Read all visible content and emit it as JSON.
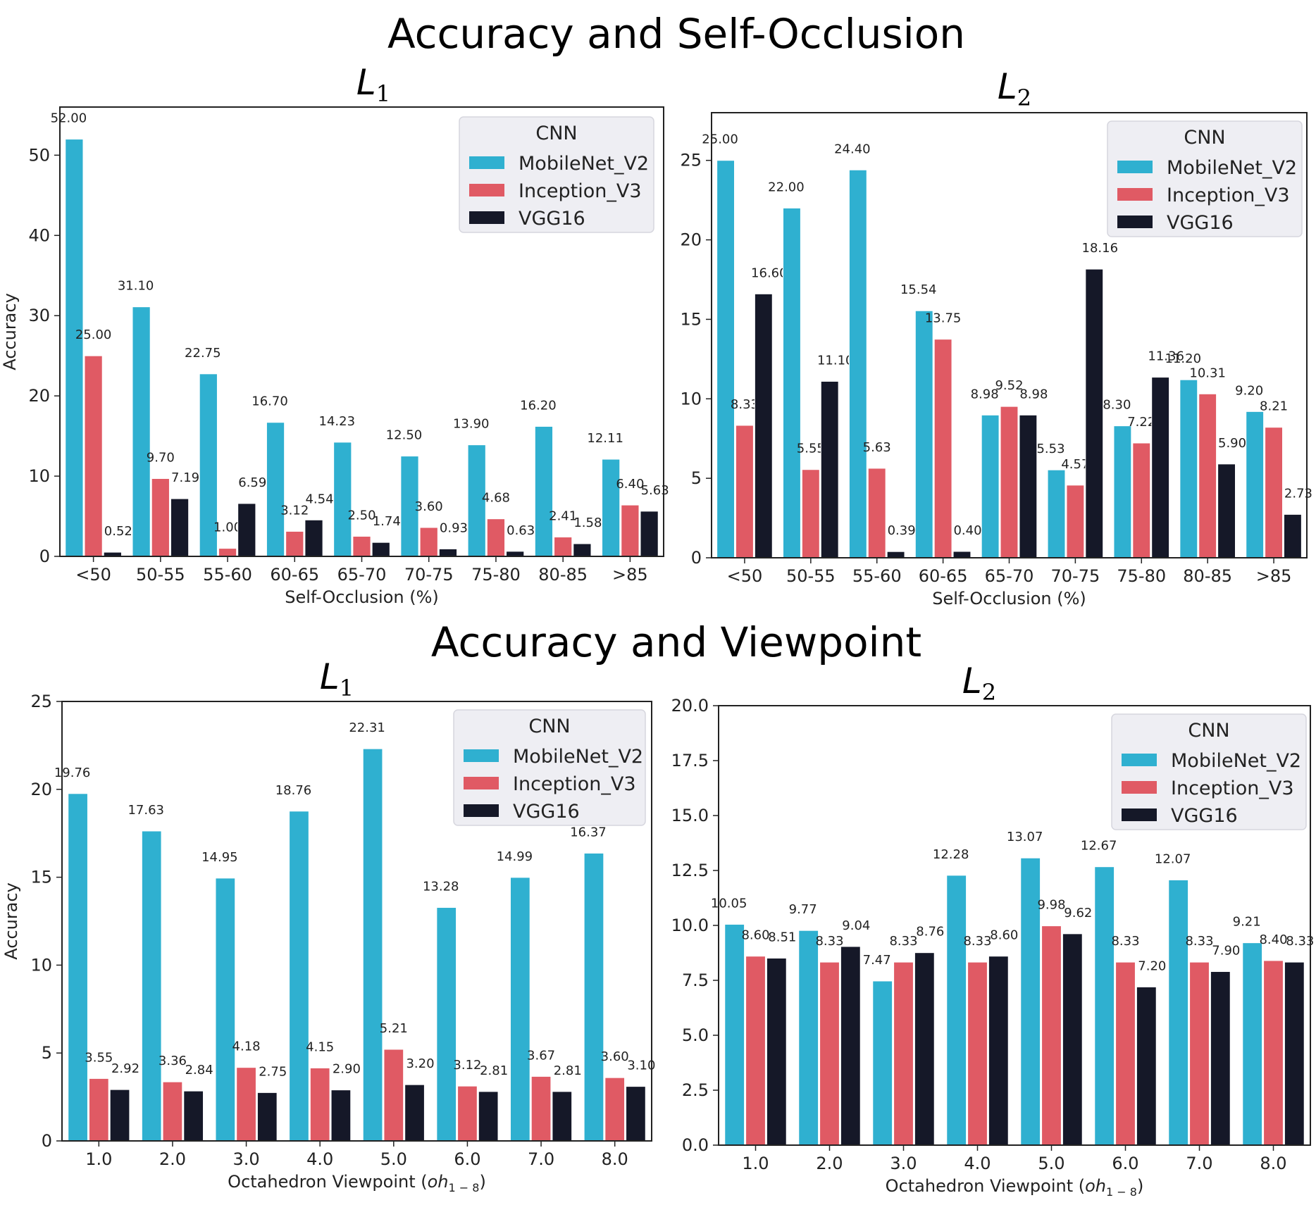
{
  "titles": {
    "top": "Accuracy and Self-Occlusion",
    "bottom": "Accuracy and Viewpoint"
  },
  "colors": {
    "MobileNet_V2": "#2fb0d0",
    "Inception_V3": "#e05a64",
    "VGG16": "#151828"
  },
  "chart_data": [
    {
      "id": "c1",
      "type": "bar",
      "title": "L",
      "title_sub": "1",
      "xlabel": "Self-Occlusion (%)",
      "ylabel": "Accuracy",
      "ylim": [
        0,
        56
      ],
      "yticks": [
        "0",
        "10",
        "20",
        "30",
        "40",
        "50"
      ],
      "ytick_values": [
        0,
        10,
        20,
        30,
        40,
        50
      ],
      "categories": [
        "<50",
        "50-55",
        "55-60",
        "60-65",
        "65-70",
        "70-75",
        "75-80",
        "80-85",
        ">85"
      ],
      "legend_title": "CNN",
      "legend_position": "top-right",
      "series": [
        {
          "name": "MobileNet_V2",
          "values": [
            52.0,
            31.1,
            22.75,
            16.7,
            14.23,
            12.5,
            13.9,
            16.2,
            12.11
          ],
          "labels": [
            "52.00",
            "31.10",
            "22.75",
            "16.70",
            "14.23",
            "12.50",
            "13.90",
            "16.20",
            "12.11"
          ]
        },
        {
          "name": "Inception_V3",
          "values": [
            25.0,
            9.7,
            1.0,
            3.12,
            2.5,
            3.6,
            4.68,
            2.41,
            6.4
          ],
          "labels": [
            "25.00",
            "9.70",
            "1.00",
            "3.12",
            "2.50",
            "3.60",
            "4.68",
            "2.41",
            "6.40"
          ]
        },
        {
          "name": "VGG16",
          "values": [
            0.52,
            7.19,
            6.59,
            4.54,
            1.74,
            0.93,
            0.63,
            1.58,
            5.63
          ],
          "labels": [
            "0.52",
            "7.19",
            "6.59",
            "4.54",
            "1.74",
            "0.93",
            "0.63",
            "1.58",
            "5.63"
          ]
        }
      ]
    },
    {
      "id": "c2",
      "type": "bar",
      "title": "L",
      "title_sub": "2",
      "xlabel": "Self-Occlusion (%)",
      "ylabel": "",
      "ylim": [
        0,
        28
      ],
      "yticks": [
        "0",
        "5",
        "10",
        "15",
        "20",
        "25"
      ],
      "ytick_values": [
        0,
        5,
        10,
        15,
        20,
        25
      ],
      "categories": [
        "<50",
        "50-55",
        "55-60",
        "60-65",
        "65-70",
        "70-75",
        "75-80",
        "80-85",
        ">85"
      ],
      "legend_title": "CNN",
      "legend_position": "top-right",
      "series": [
        {
          "name": "MobileNet_V2",
          "values": [
            25.0,
            22.0,
            24.4,
            15.54,
            8.98,
            5.53,
            8.3,
            11.2,
            9.2
          ],
          "labels": [
            "25.00",
            "22.00",
            "24.40",
            "15.54",
            "8.98",
            "5.53",
            "8.30",
            "11.20",
            "9.20"
          ]
        },
        {
          "name": "Inception_V3",
          "values": [
            8.33,
            5.55,
            5.63,
            13.75,
            9.52,
            4.57,
            7.22,
            10.31,
            8.21
          ],
          "labels": [
            "8.33",
            "5.55",
            "5.63",
            "13.75",
            "9.52",
            "4.57",
            "7.22",
            "10.31",
            "8.21"
          ]
        },
        {
          "name": "VGG16",
          "values": [
            16.6,
            11.1,
            0.39,
            0.4,
            8.98,
            18.16,
            11.36,
            5.9,
            2.73
          ],
          "labels": [
            "16.60",
            "11.10",
            "0.39",
            "0.40",
            "8.98",
            "18.16",
            "11.36",
            "5.90",
            "2.73"
          ]
        }
      ]
    },
    {
      "id": "c3",
      "type": "bar",
      "title": "L",
      "title_sub": "1",
      "xlabel": "Octahedron Viewpoint (",
      "xlabel_math": "oh",
      "xlabel_math_sub": "1 − 8",
      "xlabel_end": ")",
      "ylabel": "Accuracy",
      "ylim": [
        0,
        25
      ],
      "yticks": [
        "0",
        "5",
        "10",
        "15",
        "20",
        "25"
      ],
      "ytick_values": [
        0,
        5,
        10,
        15,
        20,
        25
      ],
      "categories": [
        "1.0",
        "2.0",
        "3.0",
        "4.0",
        "5.0",
        "6.0",
        "7.0",
        "8.0"
      ],
      "legend_title": "CNN",
      "legend_position": "top-right",
      "series": [
        {
          "name": "MobileNet_V2",
          "values": [
            19.76,
            17.63,
            14.95,
            18.76,
            22.31,
            13.28,
            14.99,
            16.37
          ],
          "labels": [
            "19.76",
            "17.63",
            "14.95",
            "18.76",
            "22.31",
            "13.28",
            "14.99",
            "16.37"
          ]
        },
        {
          "name": "Inception_V3",
          "values": [
            3.55,
            3.36,
            4.18,
            4.15,
            5.21,
            3.12,
            3.67,
            3.6
          ],
          "labels": [
            "3.55",
            "3.36",
            "4.18",
            "4.15",
            "5.21",
            "3.12",
            "3.67",
            "3.60"
          ]
        },
        {
          "name": "VGG16",
          "values": [
            2.92,
            2.84,
            2.75,
            2.9,
            3.2,
            2.81,
            2.81,
            3.1
          ],
          "labels": [
            "2.92",
            "2.84",
            "2.75",
            "2.90",
            "3.20",
            "2.81",
            "2.81",
            "3.10"
          ]
        }
      ]
    },
    {
      "id": "c4",
      "type": "bar",
      "title": "L",
      "title_sub": "2",
      "xlabel": "Octahedron Viewpoint (",
      "xlabel_math": "oh",
      "xlabel_math_sub": "1 − 8",
      "xlabel_end": ")",
      "ylabel": "",
      "ylim": [
        0,
        20
      ],
      "yticks": [
        "0.0",
        "2.5",
        "5.0",
        "7.5",
        "10.0",
        "12.5",
        "15.0",
        "17.5",
        "20.0"
      ],
      "ytick_values": [
        0,
        2.5,
        5,
        7.5,
        10,
        12.5,
        15,
        17.5,
        20
      ],
      "categories": [
        "1.0",
        "2.0",
        "3.0",
        "4.0",
        "5.0",
        "6.0",
        "7.0",
        "8.0"
      ],
      "legend_title": "CNN",
      "legend_position": "top-right",
      "series": [
        {
          "name": "MobileNet_V2",
          "values": [
            10.05,
            9.77,
            7.47,
            12.28,
            13.07,
            12.67,
            12.07,
            9.21
          ],
          "labels": [
            "10.05",
            "9.77",
            "7.47",
            "12.28",
            "13.07",
            "12.67",
            "12.07",
            "9.21"
          ]
        },
        {
          "name": "Inception_V3",
          "values": [
            8.6,
            8.33,
            8.33,
            8.33,
            9.98,
            8.33,
            8.33,
            8.4
          ],
          "labels": [
            "8.60",
            "8.33",
            "8.33",
            "8.33",
            "9.98",
            "8.33",
            "8.33",
            "8.40"
          ]
        },
        {
          "name": "VGG16",
          "values": [
            8.51,
            9.04,
            8.76,
            8.6,
            9.62,
            7.2,
            7.9,
            8.33
          ],
          "labels": [
            "8.51",
            "9.04",
            "8.76",
            "8.60",
            "9.62",
            "7.20",
            "7.90",
            "8.33"
          ]
        }
      ]
    }
  ]
}
